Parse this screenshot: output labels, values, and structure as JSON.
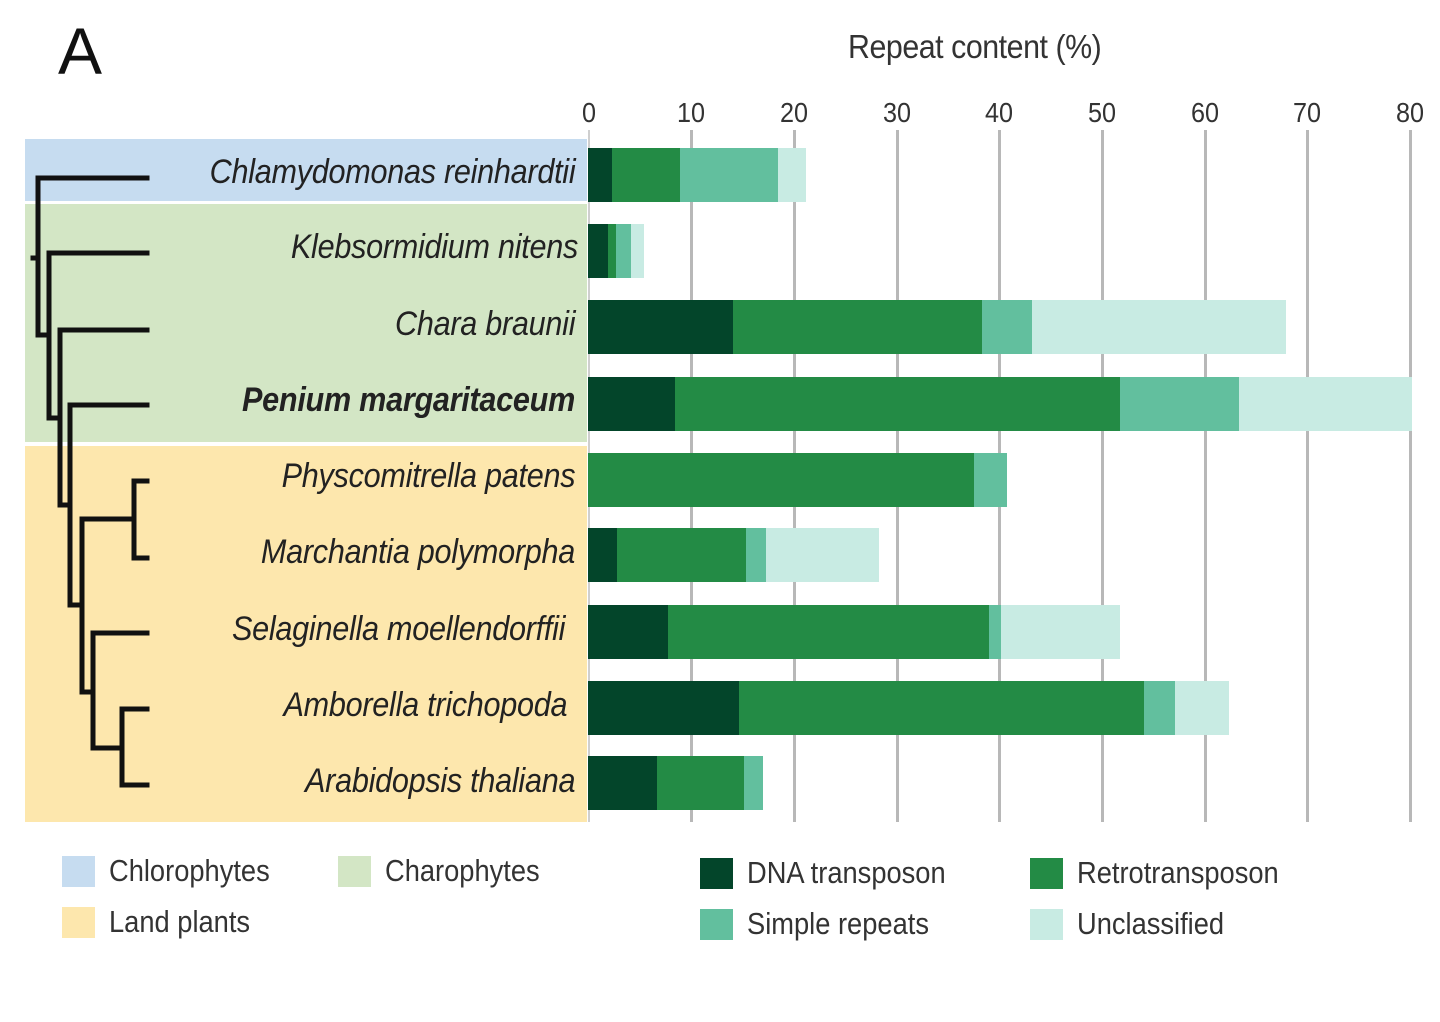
{
  "panel_letter": "A",
  "chart_data": {
    "type": "bar",
    "orientation": "horizontal",
    "stacked": true,
    "title": "Repeat content (%)",
    "xlabel": "Repeat content (%)",
    "ylabel": "",
    "xlim": [
      0,
      80
    ],
    "xticks": [
      0,
      10,
      20,
      30,
      40,
      50,
      60,
      70,
      80
    ],
    "grid": "vertical",
    "legend_position": "bottom",
    "categories": [
      "Chlamydomonas reinhardtii",
      "Klebsormidium nitens",
      "Chara braunii",
      "Penium margaritaceum",
      "Physcomitrella patens",
      "Marchantia polymorpha",
      "Selaginella moellendorffii",
      "Amborella trichopoda",
      "Arabidopsis thaliana"
    ],
    "category_groups": [
      "Chlorophytes",
      "Charophytes",
      "Charophytes",
      "Charophytes",
      "Land plants",
      "Land plants",
      "Land plants",
      "Land plants",
      "Land plants"
    ],
    "highlighted_category": "Penium margaritaceum",
    "series": [
      {
        "name": "DNA transposon",
        "color": "#03452a",
        "values": [
          2.3,
          1.9,
          14.1,
          8.5,
          0.0,
          2.8,
          7.8,
          14.7,
          6.7
        ]
      },
      {
        "name": "Retrotransposon",
        "color": "#238b45",
        "values": [
          6.7,
          0.8,
          24.2,
          43.3,
          37.6,
          12.6,
          31.2,
          39.4,
          8.5
        ]
      },
      {
        "name": "Simple repeats",
        "color": "#62bf9e",
        "values": [
          9.5,
          1.5,
          4.9,
          11.6,
          3.2,
          1.9,
          1.2,
          3.0,
          1.8
        ]
      },
      {
        "name": "Unclassified",
        "color": "#c8ebe3",
        "values": [
          2.7,
          1.3,
          24.7,
          16.8,
          0.0,
          11.0,
          11.6,
          5.3,
          0.0
        ]
      }
    ],
    "totals": [
      21.2,
      5.5,
      67.9,
      80.2,
      40.8,
      28.3,
      51.8,
      62.4,
      17.0
    ]
  },
  "axis": {
    "title": "Repeat content (%)",
    "ticks": [
      "0",
      "10",
      "20",
      "30",
      "40",
      "50",
      "60",
      "70",
      "80"
    ]
  },
  "species": [
    {
      "name": "Chlamydomonas reinhardtii",
      "bold": false
    },
    {
      "name": "Klebsormidium nitens",
      "bold": false
    },
    {
      "name": "Chara braunii",
      "bold": false
    },
    {
      "name": "Penium margaritaceum",
      "bold": true
    },
    {
      "name": "Physcomitrella patens",
      "bold": false
    },
    {
      "name": "Marchantia polymorpha",
      "bold": false
    },
    {
      "name": "Selaginella moellendorffii",
      "bold": false
    },
    {
      "name": "Amborella trichopoda",
      "bold": false
    },
    {
      "name": "Arabidopsis thaliana",
      "bold": false
    }
  ],
  "groups": [
    {
      "name": "Chlorophytes",
      "color": "#c6dcf0"
    },
    {
      "name": "Charophytes",
      "color": "#d3e6c5"
    },
    {
      "name": "Land plants",
      "color": "#fde7ad"
    }
  ],
  "legend": {
    "groups": [
      {
        "label": "Chlorophytes",
        "color": "#c6dcf0"
      },
      {
        "label": "Charophytes",
        "color": "#d3e6c5"
      },
      {
        "label": "Land plants",
        "color": "#fde7ad"
      }
    ],
    "repeat_types": [
      {
        "label": "DNA transposon",
        "color": "#03452a"
      },
      {
        "label": "Retrotransposon",
        "color": "#238b45"
      },
      {
        "label": "Simple repeats",
        "color": "#62bf9e"
      },
      {
        "label": "Unclassified",
        "color": "#c8ebe3"
      }
    ]
  }
}
